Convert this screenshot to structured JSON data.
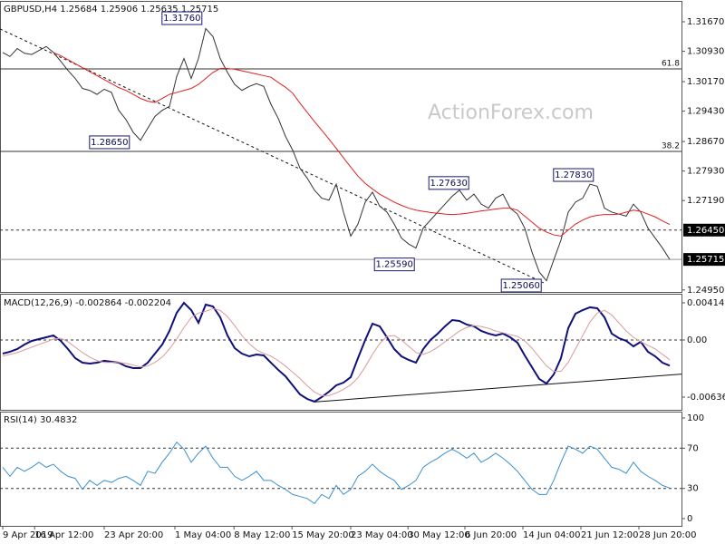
{
  "chart_data": [
    {
      "type": "line",
      "title": "GBPUSD,H4  1.25684 1.25906 1.25635 1.25715",
      "watermark": "ActionForex.com",
      "x": [
        0,
        1,
        2,
        3,
        4,
        5,
        6,
        7,
        8,
        9,
        10,
        11,
        12,
        13,
        14,
        15,
        16,
        17,
        18,
        19,
        20,
        21,
        22,
        23,
        24,
        25,
        26,
        27,
        28,
        29,
        30,
        31,
        32,
        33,
        34,
        35,
        36,
        37,
        38,
        39,
        40,
        41,
        42,
        43,
        44,
        45,
        46,
        47,
        48,
        49,
        50,
        51,
        52,
        53,
        54,
        55,
        56,
        57,
        58,
        59,
        60,
        61,
        62,
        63,
        64,
        65,
        66,
        67,
        68,
        69,
        70,
        71,
        72,
        73,
        74,
        75,
        76,
        77,
        78,
        79,
        80,
        81,
        82,
        83,
        84,
        85,
        86,
        87,
        88,
        89,
        90,
        91,
        92
      ],
      "xlim": [
        -0.375,
        93.625
      ],
      "ylim": [
        1.249,
        1.3217
      ],
      "yticks": [
        {
          "value": 1.3167,
          "label": "1.31670"
        },
        {
          "value": 1.3093,
          "label": "1.30930"
        },
        {
          "value": 1.3017,
          "label": "1.30170"
        },
        {
          "value": 1.2943,
          "label": "1.29430"
        },
        {
          "value": 1.2867,
          "label": "1.28670"
        },
        {
          "value": 1.2793,
          "label": "1.27930"
        },
        {
          "value": 1.2719,
          "label": "1.27190"
        },
        {
          "value": 1.2495,
          "label": "1.24950"
        }
      ],
      "levels": [
        {
          "value": 1.2645,
          "label": "1.26450",
          "style": "dashed"
        },
        {
          "value": 1.25715,
          "label": "1.25715",
          "style": "solid"
        }
      ],
      "fib_levels": [
        {
          "label": "61.8",
          "price": 1.3049
        },
        {
          "label": "38.2",
          "price": 1.2842
        }
      ],
      "trendline": {
        "x": [
          -0.375,
          74.6
        ],
        "y": [
          1.3149,
          1.2513
        ]
      },
      "annotations": [
        {
          "value": 1.3176,
          "label": "1.31760",
          "x": 28.1
        },
        {
          "value": 1.2865,
          "label": "1.28650",
          "x": 18.1
        },
        {
          "value": 1.2763,
          "label": "1.27630",
          "x": 64.9
        },
        {
          "value": 1.2559,
          "label": "1.25590",
          "x": 57.4
        },
        {
          "value": 1.2506,
          "label": "1.25060",
          "x": 74.9
        },
        {
          "value": 1.2783,
          "label": "1.27830",
          "x": 82.1
        }
      ],
      "series": [
        {
          "color": "#333333",
          "values": [
            1.309,
            1.308,
            1.31,
            1.3088,
            1.3085,
            1.3095,
            1.3105,
            1.309,
            1.3068,
            1.3045,
            1.3025,
            1.3,
            1.2995,
            1.2985,
            1.2998,
            1.299,
            1.2945,
            1.2922,
            1.289,
            1.287,
            1.29,
            1.293,
            1.2945,
            1.2955,
            1.303,
            1.3075,
            1.3025,
            1.3075,
            1.315,
            1.313,
            1.3075,
            1.304,
            1.301,
            1.2995,
            1.3005,
            1.3012,
            1.3005,
            1.296,
            1.2925,
            1.288,
            1.2845,
            1.28,
            1.2775,
            1.2745,
            1.2725,
            1.272,
            1.276,
            1.269,
            1.263,
            1.266,
            1.2715,
            1.274,
            1.2705,
            1.269,
            1.266,
            1.2625,
            1.261,
            1.26,
            1.265,
            1.267,
            1.269,
            1.271,
            1.273,
            1.2745,
            1.272,
            1.2735,
            1.271,
            1.27,
            1.2725,
            1.2735,
            1.27,
            1.2685,
            1.265,
            1.259,
            1.254,
            1.2518,
            1.257,
            1.262,
            1.269,
            1.2715,
            1.2725,
            1.276,
            1.2755,
            1.27,
            1.269,
            1.2685,
            1.268,
            1.271,
            1.269,
            1.265,
            1.2625,
            1.26,
            1.25715
          ]
        },
        {
          "color": "#e02020",
          "values": [
            null,
            null,
            null,
            null,
            null,
            null,
            null,
            1.309,
            1.3082,
            1.3072,
            1.3062,
            1.3052,
            1.3042,
            1.3032,
            1.3022,
            1.3012,
            1.3002,
            1.2995,
            1.2985,
            1.2975,
            1.2968,
            1.2965,
            1.2975,
            1.2985,
            1.299,
            1.2995,
            1.3,
            1.301,
            1.3025,
            1.304,
            1.305,
            1.305,
            1.3048,
            1.3044,
            1.304,
            1.3036,
            1.3032,
            1.3028,
            1.3015,
            1.3003,
            1.2988,
            1.2963,
            1.294,
            1.2917,
            1.2895,
            1.2873,
            1.285,
            1.2826,
            1.2803,
            1.278,
            1.2762,
            1.2748,
            1.2735,
            1.2725,
            1.2715,
            1.2707,
            1.27,
            1.2695,
            1.2692,
            1.2689,
            1.2687,
            1.2685,
            1.2684,
            1.2685,
            1.2687,
            1.269,
            1.2693,
            1.2695,
            1.2698,
            1.27,
            1.27,
            1.2695,
            1.268,
            1.2665,
            1.265,
            1.264,
            1.2633,
            1.263,
            1.2645,
            1.266,
            1.267,
            1.2678,
            1.2682,
            1.2684,
            1.2684,
            1.2685,
            1.269,
            1.2695,
            1.2692,
            1.2685,
            1.2678,
            1.2668,
            1.2659
          ]
        }
      ]
    },
    {
      "type": "line",
      "title": "MACD(12,26,9) -0.002864 -0.002204",
      "ylim": [
        -0.00778,
        0.00505
      ],
      "yticks": [
        0.004141,
        {
          "value": 0,
          "label": "0.00"
        },
        -0.006365
      ],
      "levels": [
        {
          "value": 0,
          "style": "dashed"
        }
      ],
      "trendline": {
        "x": [
          43.1,
          93.625
        ],
        "y": [
          -0.0069,
          -0.0038
        ]
      },
      "series": [
        {
          "color": "#10107a",
          "values": [
            -0.00152,
            -0.00131,
            -0.00101,
            -0.00051,
            -0.0001,
            0.0001,
            0.0003,
            0.00051,
            -0.0001,
            -0.00101,
            -0.00202,
            -0.00253,
            -0.00263,
            -0.00253,
            -0.00232,
            -0.00242,
            -0.00253,
            -0.00293,
            -0.00313,
            -0.00313,
            -0.00253,
            -0.00152,
            -0.00051,
            0.00101,
            0.00303,
            0.00414,
            0.00333,
            0.00192,
            0.00394,
            0.00374,
            0.00253,
            0.00051,
            -0.00091,
            -0.00152,
            -0.00182,
            -0.00162,
            -0.00172,
            -0.00253,
            -0.00333,
            -0.00404,
            -0.00505,
            -0.00606,
            -0.00657,
            -0.00687,
            -0.00636,
            -0.00576,
            -0.00505,
            -0.00475,
            -0.00414,
            -0.00202,
            0,
            0.00182,
            0.00152,
            0.0003,
            -0.00101,
            -0.00182,
            -0.00222,
            -0.00253,
            -0.00101,
            0,
            0.00071,
            0.00152,
            0.00222,
            0.00212,
            0.00172,
            0.00152,
            0.00101,
            0.00071,
            0.00051,
            0.00071,
            0.0003,
            -0.0003,
            -0.00172,
            -0.00303,
            -0.00434,
            -0.00485,
            -0.00384,
            -0.00202,
            0.00131,
            0.00293,
            0.00333,
            0.00364,
            0.00354,
            0.00253,
            0.00071,
            0.0002,
            -0.0001,
            -0.00071,
            -0.0002,
            -0.00131,
            -0.00182,
            -0.00253,
            -0.002864
          ]
        },
        {
          "color": "#d99a9a",
          "values": [
            -0.0018,
            -0.0016,
            -0.0014,
            -0.0011,
            -0.0008,
            -0.0005,
            -0.0002,
            0.0001,
            0.0002,
            -0.0002,
            -0.0008,
            -0.0014,
            -0.0019,
            -0.0023,
            -0.0025,
            -0.0025,
            -0.0025,
            -0.0026,
            -0.0028,
            -0.003,
            -0.0029,
            -0.0025,
            -0.0019,
            -0.001,
            0.0001,
            0.0014,
            0.0025,
            0.003,
            0.0032,
            0.0035,
            0.0033,
            0.0026,
            0.0016,
            0.0005,
            -0.0004,
            -0.0011,
            -0.0015,
            -0.0018,
            -0.0023,
            -0.0029,
            -0.0036,
            -0.0043,
            -0.0051,
            -0.0058,
            -0.0062,
            -0.0062,
            -0.0059,
            -0.0055,
            -0.005,
            -0.0042,
            -0.003,
            -0.0016,
            -0.0004,
            0.0004,
            0.0005,
            0,
            -0.0007,
            -0.0014,
            -0.0016,
            -0.0013,
            -0.0008,
            -0.0002,
            0.0004,
            0.001,
            0.0014,
            0.0016,
            0.0015,
            0.0013,
            0.001,
            0.0008,
            0.0006,
            0.0004,
            -0.0001,
            -0.0009,
            -0.0019,
            -0.0029,
            -0.0035,
            -0.0035,
            -0.0025,
            -0.001,
            0.0005,
            0.002,
            0.003,
            0.0033,
            0.0028,
            0.0019,
            0.001,
            0.0003,
            -0.0002,
            -0.0006,
            -0.001,
            -0.0016,
            -0.002204
          ]
        }
      ]
    },
    {
      "type": "line",
      "title": "RSI(14) 30.4832",
      "ylim": [
        -7.2,
        105.4
      ],
      "yticks": [
        100,
        70,
        30,
        0
      ],
      "levels": [
        {
          "value": 70,
          "style": "dashed"
        },
        {
          "value": 30,
          "style": "dashed"
        }
      ],
      "xticks": [
        {
          "value": 0,
          "label": "9 Apr 2019"
        },
        {
          "value": 4.4,
          "label": "16 Apr 12:00"
        },
        {
          "value": 14,
          "label": "23 Apr 20:00"
        },
        {
          "value": 23.75,
          "label": "1 May 04:00"
        },
        {
          "value": 31.9,
          "label": "8 May 12:00"
        },
        {
          "value": 39.9,
          "label": "15 May 20:00"
        },
        {
          "value": 48,
          "label": "23 May 04:00"
        },
        {
          "value": 55.9,
          "label": "30 May 12:00"
        },
        {
          "value": 63.75,
          "label": "6 Jun 20:00"
        },
        {
          "value": 71.75,
          "label": "14 Jun 04:00"
        },
        {
          "value": 79.75,
          "label": "21 Jun 12:00"
        },
        {
          "value": 87.75,
          "label": "28 Jun 20:00"
        }
      ],
      "series": [
        {
          "color": "#3a8fd0",
          "values": [
            51,
            42,
            51,
            47,
            51,
            56,
            51,
            54,
            47,
            42,
            40,
            29,
            38,
            33,
            38,
            36,
            40,
            42,
            38,
            33,
            47,
            45,
            56,
            65,
            76,
            69,
            56,
            65,
            72,
            60,
            51,
            51,
            42,
            38,
            42,
            47,
            38,
            38,
            33,
            29,
            24,
            22,
            20,
            15,
            24,
            20,
            33,
            24,
            29,
            42,
            47,
            54,
            47,
            42,
            38,
            29,
            33,
            38,
            51,
            56,
            60,
            65,
            69,
            65,
            60,
            65,
            56,
            60,
            65,
            60,
            54,
            47,
            38,
            29,
            24,
            24,
            38,
            56,
            72,
            69,
            65,
            72,
            69,
            60,
            51,
            49,
            45,
            56,
            47,
            42,
            38,
            33,
            30.4832
          ]
        }
      ]
    }
  ]
}
